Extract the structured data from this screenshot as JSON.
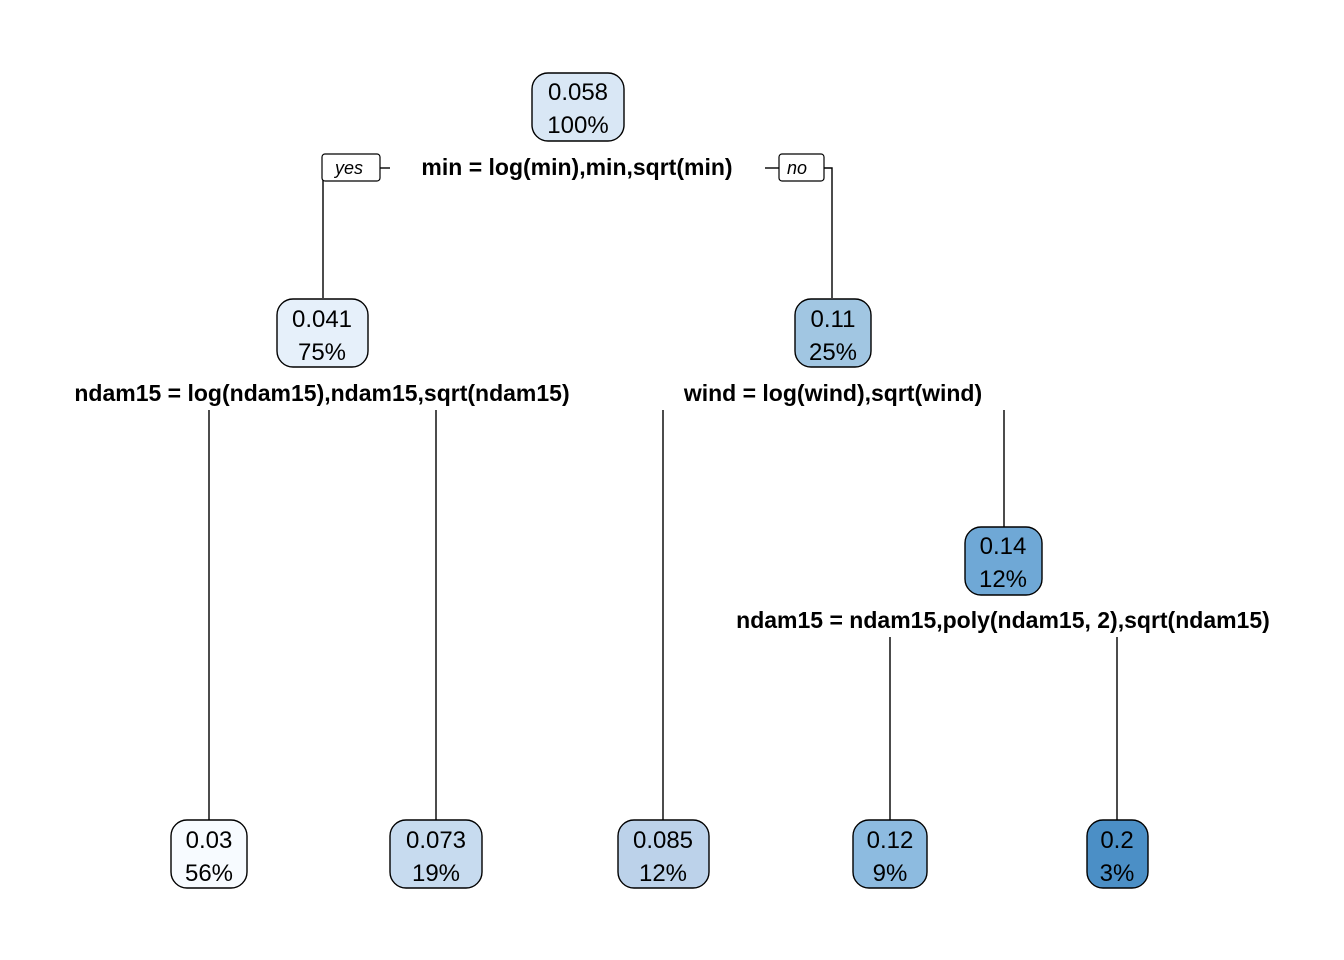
{
  "branch_labels": {
    "yes": "yes",
    "no": "no"
  },
  "nodes": [
    {
      "id": "n1",
      "value": "0.058",
      "percent": "100%",
      "fill": "#d9e7f5"
    },
    {
      "id": "n2",
      "value": "0.041",
      "percent": "75%",
      "fill": "#e6f0fa"
    },
    {
      "id": "n3",
      "value": "0.11",
      "percent": "25%",
      "fill": "#a1c6e2"
    },
    {
      "id": "n4",
      "value": "0.03",
      "percent": "56%",
      "fill": "#f7fbff"
    },
    {
      "id": "n5",
      "value": "0.073",
      "percent": "19%",
      "fill": "#c7dbef"
    },
    {
      "id": "n6",
      "value": "0.085",
      "percent": "12%",
      "fill": "#bcd2ea"
    },
    {
      "id": "n7",
      "value": "0.14",
      "percent": "12%",
      "fill": "#6fa8d6"
    },
    {
      "id": "n8",
      "value": "0.12",
      "percent": "9%",
      "fill": "#8dbbe0"
    },
    {
      "id": "n9",
      "value": "0.2",
      "percent": "3%",
      "fill": "#4b8fc6"
    }
  ],
  "splits": [
    {
      "id": "s1",
      "text": "min = log(min),min,sqrt(min)"
    },
    {
      "id": "s2",
      "text": "ndam15 = log(ndam15),ndam15,sqrt(ndam15)"
    },
    {
      "id": "s3",
      "text": "wind = log(wind),sqrt(wind)"
    },
    {
      "id": "s4",
      "text": "ndam15 = ndam15,poly(ndam15, 2),sqrt(ndam15)"
    }
  ]
}
